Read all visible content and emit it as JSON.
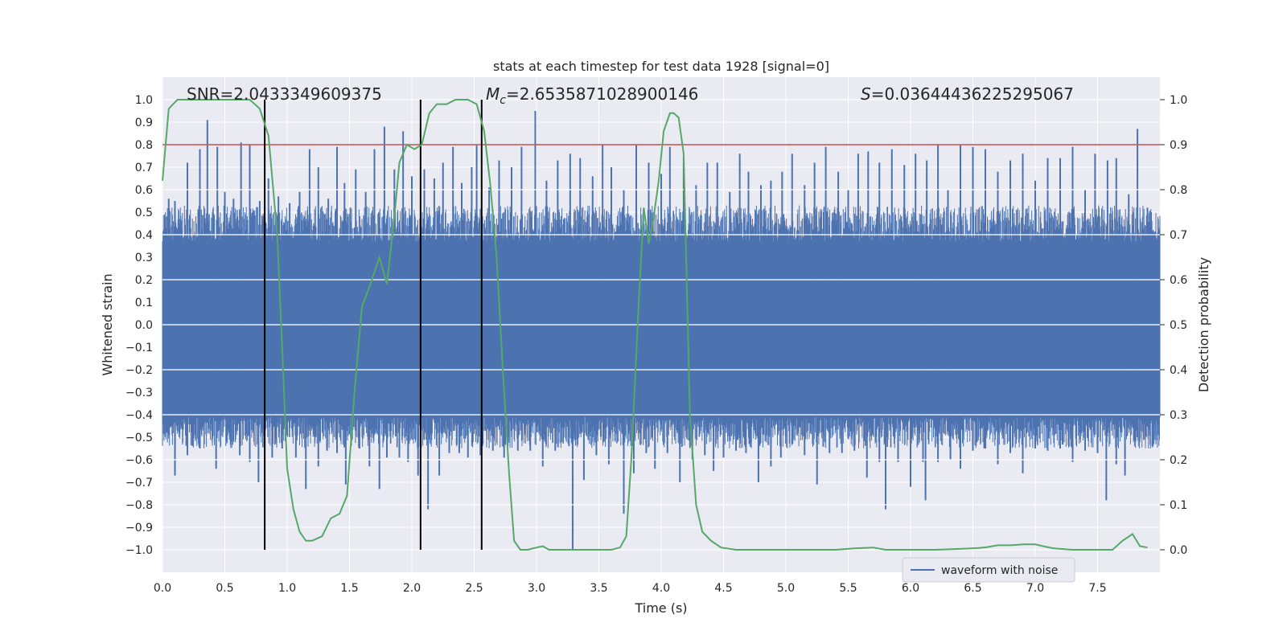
{
  "chart_data": {
    "type": "line",
    "title": "stats at each timestep for test data 1928 [signal=0]",
    "xlabel": "Time (s)",
    "ylabel": "Whitened strain",
    "y2label": "Detection probability",
    "xlim": [
      0.0,
      8.0
    ],
    "ylim": [
      -1.1,
      1.1
    ],
    "y2lim": [
      -0.05,
      1.05
    ],
    "xticks": [
      "0.0",
      "0.5",
      "1.0",
      "1.5",
      "2.0",
      "2.5",
      "3.0",
      "3.5",
      "4.0",
      "4.5",
      "5.0",
      "5.5",
      "6.0",
      "6.5",
      "7.0",
      "7.5"
    ],
    "xtick_values": [
      0.0,
      0.5,
      1.0,
      1.5,
      2.0,
      2.5,
      3.0,
      3.5,
      4.0,
      4.5,
      5.0,
      5.5,
      6.0,
      6.5,
      7.0,
      7.5
    ],
    "yticks": [
      "1.0",
      "0.9",
      "0.8",
      "0.7",
      "0.6",
      "0.5",
      "0.4",
      "0.3",
      "0.2",
      "0.1",
      "0.0",
      "−0.1",
      "−0.2",
      "−0.3",
      "−0.4",
      "−0.5",
      "−0.6",
      "−0.7",
      "−0.8",
      "−0.9",
      "−1.0"
    ],
    "ytick_values": [
      1.0,
      0.9,
      0.8,
      0.7,
      0.6,
      0.5,
      0.4,
      0.3,
      0.2,
      0.1,
      0.0,
      -0.1,
      -0.2,
      -0.3,
      -0.4,
      -0.5,
      -0.6,
      -0.7,
      -0.8,
      -0.9,
      -1.0
    ],
    "y2ticks": [
      "1.0",
      "0.9",
      "0.8",
      "0.7",
      "0.6",
      "0.5",
      "0.4",
      "0.3",
      "0.2",
      "0.1",
      "0.0"
    ],
    "y2tick_values": [
      1.0,
      0.9,
      0.8,
      0.7,
      0.6,
      0.5,
      0.4,
      0.3,
      0.2,
      0.1,
      0.0
    ],
    "annotations": {
      "snr": "SNR=2.0433349609375",
      "mc_symbol": "M",
      "mc_sub": "c",
      "mc_value": "=2.6535871028900146",
      "s_symbol": "S",
      "s_value": "=0.03644436225295067"
    },
    "threshold": {
      "value": 0.9,
      "axis": "y2",
      "color": "#c44e52"
    },
    "vertical_lines": [
      0.82,
      2.07,
      2.56
    ],
    "waveform": {
      "name": "waveform with noise",
      "color": "#4c72b0",
      "envelope_upper": 0.37,
      "envelope_lower": -0.41,
      "spikes_upper": [
        [
          0.05,
          0.56
        ],
        [
          0.1,
          0.55
        ],
        [
          0.2,
          0.72
        ],
        [
          0.3,
          0.78
        ],
        [
          0.36,
          0.91
        ],
        [
          0.44,
          0.79
        ],
        [
          0.5,
          0.59
        ],
        [
          0.57,
          0.56
        ],
        [
          0.63,
          0.81
        ],
        [
          0.7,
          0.8
        ],
        [
          0.78,
          0.55
        ],
        [
          0.85,
          0.65
        ],
        [
          0.93,
          0.57
        ],
        [
          1.02,
          0.54
        ],
        [
          1.1,
          0.59
        ],
        [
          1.18,
          0.78
        ],
        [
          1.25,
          0.7
        ],
        [
          1.33,
          0.56
        ],
        [
          1.4,
          0.79
        ],
        [
          1.46,
          0.63
        ],
        [
          1.55,
          0.69
        ],
        [
          1.63,
          0.59
        ],
        [
          1.7,
          0.78
        ],
        [
          1.78,
          0.88
        ],
        [
          1.86,
          0.69
        ],
        [
          1.93,
          0.86
        ],
        [
          2.0,
          0.66
        ],
        [
          2.1,
          0.69
        ],
        [
          2.18,
          0.65
        ],
        [
          2.25,
          0.72
        ],
        [
          2.33,
          0.79
        ],
        [
          2.4,
          0.63
        ],
        [
          2.48,
          0.7
        ],
        [
          2.52,
          0.8
        ],
        [
          2.62,
          0.61
        ],
        [
          2.7,
          0.73
        ],
        [
          2.8,
          0.7
        ],
        [
          2.88,
          0.79
        ],
        [
          2.99,
          0.95
        ],
        [
          3.08,
          0.64
        ],
        [
          3.17,
          0.73
        ],
        [
          3.27,
          0.76
        ],
        [
          3.35,
          0.74
        ],
        [
          3.45,
          0.66
        ],
        [
          3.53,
          0.8
        ],
        [
          3.6,
          0.7
        ],
        [
          3.7,
          0.6
        ],
        [
          3.8,
          0.8
        ],
        [
          3.9,
          0.72
        ],
        [
          4.0,
          0.67
        ],
        [
          4.07,
          0.79
        ],
        [
          4.18,
          0.74
        ],
        [
          4.28,
          0.62
        ],
        [
          4.37,
          0.72
        ],
        [
          4.45,
          0.72
        ],
        [
          4.55,
          0.59
        ],
        [
          4.63,
          0.76
        ],
        [
          4.7,
          0.68
        ],
        [
          4.8,
          0.62
        ],
        [
          4.88,
          0.64
        ],
        [
          4.97,
          0.68
        ],
        [
          5.05,
          0.76
        ],
        [
          5.15,
          0.62
        ],
        [
          5.23,
          0.72
        ],
        [
          5.32,
          0.79
        ],
        [
          5.42,
          0.68
        ],
        [
          5.5,
          0.6
        ],
        [
          5.58,
          0.76
        ],
        [
          5.66,
          0.77
        ],
        [
          5.75,
          0.72
        ],
        [
          5.85,
          0.78
        ],
        [
          5.95,
          0.71
        ],
        [
          6.04,
          0.76
        ],
        [
          6.13,
          0.73
        ],
        [
          6.22,
          0.8
        ],
        [
          6.3,
          0.6
        ],
        [
          6.4,
          0.8
        ],
        [
          6.5,
          0.79
        ],
        [
          6.6,
          0.78
        ],
        [
          6.7,
          0.68
        ],
        [
          6.8,
          0.73
        ],
        [
          6.9,
          0.76
        ],
        [
          7.0,
          0.64
        ],
        [
          7.1,
          0.74
        ],
        [
          7.2,
          0.74
        ],
        [
          7.3,
          0.79
        ],
        [
          7.4,
          0.6
        ],
        [
          7.48,
          0.76
        ],
        [
          7.58,
          0.73
        ],
        [
          7.65,
          0.74
        ],
        [
          7.75,
          0.58
        ],
        [
          7.82,
          0.87
        ],
        [
          7.9,
          0.52
        ]
      ],
      "spikes_lower": [
        [
          0.03,
          -0.48
        ],
        [
          0.1,
          -0.56
        ],
        [
          0.1,
          -0.67
        ],
        [
          0.2,
          -0.58
        ],
        [
          0.3,
          -0.55
        ],
        [
          0.43,
          -0.64
        ],
        [
          0.55,
          -0.52
        ],
        [
          0.62,
          -0.58
        ],
        [
          0.7,
          -0.61
        ],
        [
          0.77,
          -0.7
        ],
        [
          0.88,
          -0.59
        ],
        [
          0.96,
          -0.55
        ],
        [
          1.07,
          -0.59
        ],
        [
          1.15,
          -0.73
        ],
        [
          1.25,
          -0.63
        ],
        [
          1.32,
          -0.56
        ],
        [
          1.4,
          -0.57
        ],
        [
          1.47,
          -0.71
        ],
        [
          1.58,
          -0.55
        ],
        [
          1.66,
          -0.63
        ],
        [
          1.74,
          -0.73
        ],
        [
          1.8,
          -0.59
        ],
        [
          1.9,
          -0.59
        ],
        [
          1.97,
          -0.61
        ],
        [
          2.05,
          -0.67
        ],
        [
          2.13,
          -0.82
        ],
        [
          2.22,
          -0.67
        ],
        [
          2.3,
          -0.57
        ],
        [
          2.38,
          -0.57
        ],
        [
          2.45,
          -0.59
        ],
        [
          2.55,
          -0.58
        ],
        [
          2.65,
          -0.56
        ],
        [
          2.74,
          -0.59
        ],
        [
          2.85,
          -0.56
        ],
        [
          2.95,
          -0.56
        ],
        [
          3.05,
          -0.63
        ],
        [
          3.15,
          -0.56
        ],
        [
          3.29,
          -1.0
        ],
        [
          3.38,
          -0.69
        ],
        [
          3.48,
          -0.58
        ],
        [
          3.58,
          -0.62
        ],
        [
          3.7,
          -0.84
        ],
        [
          3.78,
          -0.66
        ],
        [
          3.88,
          -0.57
        ],
        [
          3.95,
          -0.64
        ],
        [
          4.05,
          -0.57
        ],
        [
          4.15,
          -0.7
        ],
        [
          4.25,
          -0.6
        ],
        [
          4.35,
          -0.58
        ],
        [
          4.42,
          -0.65
        ],
        [
          4.5,
          -0.59
        ],
        [
          4.6,
          -0.56
        ],
        [
          4.68,
          -0.57
        ],
        [
          4.78,
          -0.7
        ],
        [
          4.88,
          -0.63
        ],
        [
          4.96,
          -0.59
        ],
        [
          5.05,
          -0.53
        ],
        [
          5.15,
          -0.58
        ],
        [
          5.25,
          -0.71
        ],
        [
          5.35,
          -0.57
        ],
        [
          5.45,
          -0.57
        ],
        [
          5.55,
          -0.56
        ],
        [
          5.65,
          -0.68
        ],
        [
          5.75,
          -0.61
        ],
        [
          5.8,
          -0.82
        ],
        [
          5.9,
          -0.61
        ],
        [
          6.0,
          -0.72
        ],
        [
          6.1,
          -0.61
        ],
        [
          6.12,
          -0.78
        ],
        [
          6.22,
          -0.61
        ],
        [
          6.32,
          -0.6
        ],
        [
          6.4,
          -0.64
        ],
        [
          6.5,
          -0.56
        ],
        [
          6.6,
          -0.55
        ],
        [
          6.7,
          -0.62
        ],
        [
          6.8,
          -0.57
        ],
        [
          6.9,
          -0.66
        ],
        [
          7.0,
          -0.55
        ],
        [
          7.1,
          -0.56
        ],
        [
          7.2,
          -0.55
        ],
        [
          7.3,
          -0.61
        ],
        [
          7.4,
          -0.56
        ],
        [
          7.5,
          -0.57
        ],
        [
          7.57,
          -0.78
        ],
        [
          7.65,
          -0.62
        ],
        [
          7.72,
          -0.67
        ],
        [
          7.82,
          -0.5
        ],
        [
          7.9,
          -0.41
        ]
      ]
    },
    "probability": {
      "color": "#55a868",
      "points": [
        [
          0.0,
          0.82
        ],
        [
          0.05,
          0.98
        ],
        [
          0.12,
          1.0
        ],
        [
          0.3,
          1.0
        ],
        [
          0.5,
          1.0
        ],
        [
          0.7,
          1.0
        ],
        [
          0.78,
          0.98
        ],
        [
          0.85,
          0.92
        ],
        [
          0.92,
          0.7
        ],
        [
          0.96,
          0.45
        ],
        [
          1.0,
          0.18
        ],
        [
          1.05,
          0.09
        ],
        [
          1.1,
          0.04
        ],
        [
          1.15,
          0.02
        ],
        [
          1.2,
          0.02
        ],
        [
          1.28,
          0.03
        ],
        [
          1.35,
          0.07
        ],
        [
          1.42,
          0.08
        ],
        [
          1.48,
          0.12
        ],
        [
          1.54,
          0.35
        ],
        [
          1.6,
          0.54
        ],
        [
          1.68,
          0.6
        ],
        [
          1.74,
          0.65
        ],
        [
          1.8,
          0.59
        ],
        [
          1.86,
          0.74
        ],
        [
          1.9,
          0.86
        ],
        [
          1.96,
          0.9
        ],
        [
          2.02,
          0.89
        ],
        [
          2.08,
          0.9
        ],
        [
          2.14,
          0.97
        ],
        [
          2.2,
          0.99
        ],
        [
          2.28,
          0.99
        ],
        [
          2.35,
          1.0
        ],
        [
          2.45,
          1.0
        ],
        [
          2.52,
          0.99
        ],
        [
          2.58,
          0.93
        ],
        [
          2.63,
          0.81
        ],
        [
          2.68,
          0.65
        ],
        [
          2.73,
          0.4
        ],
        [
          2.78,
          0.17
        ],
        [
          2.82,
          0.02
        ],
        [
          2.87,
          0.0
        ],
        [
          2.93,
          0.0
        ],
        [
          3.0,
          0.005
        ],
        [
          3.05,
          0.008
        ],
        [
          3.1,
          0.0
        ],
        [
          3.2,
          0.0
        ],
        [
          3.35,
          0.0
        ],
        [
          3.5,
          0.0
        ],
        [
          3.6,
          0.0
        ],
        [
          3.67,
          0.005
        ],
        [
          3.72,
          0.03
        ],
        [
          3.76,
          0.2
        ],
        [
          3.82,
          0.55
        ],
        [
          3.86,
          0.76
        ],
        [
          3.9,
          0.68
        ],
        [
          3.94,
          0.74
        ],
        [
          3.98,
          0.82
        ],
        [
          4.02,
          0.93
        ],
        [
          4.07,
          0.97
        ],
        [
          4.1,
          0.97
        ],
        [
          4.14,
          0.96
        ],
        [
          4.18,
          0.88
        ],
        [
          4.23,
          0.3
        ],
        [
          4.28,
          0.1
        ],
        [
          4.33,
          0.04
        ],
        [
          4.4,
          0.02
        ],
        [
          4.48,
          0.005
        ],
        [
          4.6,
          0.0
        ],
        [
          4.8,
          0.0
        ],
        [
          5.0,
          0.0
        ],
        [
          5.2,
          0.0
        ],
        [
          5.4,
          0.0
        ],
        [
          5.55,
          0.003
        ],
        [
          5.7,
          0.005
        ],
        [
          5.8,
          0.0
        ],
        [
          6.0,
          0.0
        ],
        [
          6.2,
          0.0
        ],
        [
          6.4,
          0.002
        ],
        [
          6.55,
          0.004
        ],
        [
          6.62,
          0.006
        ],
        [
          6.7,
          0.01
        ],
        [
          6.8,
          0.01
        ],
        [
          6.9,
          0.012
        ],
        [
          7.0,
          0.012
        ],
        [
          7.08,
          0.007
        ],
        [
          7.15,
          0.003
        ],
        [
          7.3,
          0.0
        ],
        [
          7.5,
          0.0
        ],
        [
          7.62,
          0.0
        ],
        [
          7.7,
          0.02
        ],
        [
          7.78,
          0.035
        ],
        [
          7.84,
          0.008
        ],
        [
          7.9,
          0.005
        ]
      ]
    },
    "legend": {
      "label": "waveform with noise",
      "position": "lower-right"
    }
  }
}
